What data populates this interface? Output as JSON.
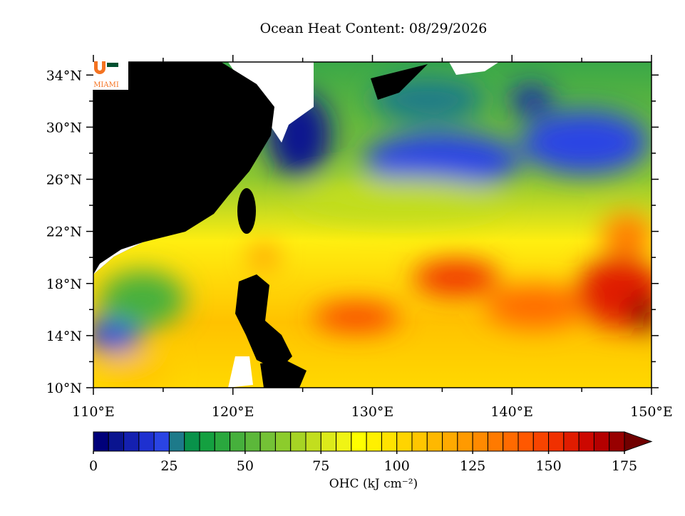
{
  "title": "Ocean Heat Content: 08/29/2026",
  "logo": "MIAMI",
  "map": {
    "xlim": [
      110,
      150
    ],
    "ylim": [
      10,
      35
    ],
    "xticks": [
      {
        "value": 110,
        "label": "110°E"
      },
      {
        "value": 120,
        "label": "120°E"
      },
      {
        "value": 130,
        "label": "130°E"
      },
      {
        "value": 140,
        "label": "140°E"
      },
      {
        "value": 150,
        "label": "150°E"
      }
    ],
    "yticks": [
      {
        "value": 10,
        "label": "10°N"
      },
      {
        "value": 14,
        "label": "14°N"
      },
      {
        "value": 18,
        "label": "18°N"
      },
      {
        "value": 22,
        "label": "22°N"
      },
      {
        "value": 26,
        "label": "26°N"
      },
      {
        "value": 30,
        "label": "30°N"
      },
      {
        "value": 34,
        "label": "34°N"
      }
    ]
  },
  "colorbar": {
    "label": "OHC (kJ cm⁻²)",
    "lim": [
      0,
      175
    ],
    "ticks": [
      0,
      25,
      50,
      75,
      100,
      125,
      150,
      175
    ],
    "colors": [
      "#00007a",
      "#0a148f",
      "#1420b0",
      "#1e30d0",
      "#2a44e4",
      "#1d7a8a",
      "#08924a",
      "#14a040",
      "#2aa83e",
      "#46b03c",
      "#5cb83a",
      "#74c236",
      "#8ccc2c",
      "#a6d424",
      "#c2de1e",
      "#dcea1a",
      "#f0f414",
      "#ffff00",
      "#fff000",
      "#ffe200",
      "#ffd400",
      "#ffc600",
      "#ffb800",
      "#ffaa00",
      "#ff9a00",
      "#ff8a00",
      "#ff7a00",
      "#ff6a00",
      "#ff5800",
      "#f84400",
      "#f03000",
      "#e01c00",
      "#cc0800",
      "#b40000",
      "#980000",
      "#700000"
    ]
  }
}
